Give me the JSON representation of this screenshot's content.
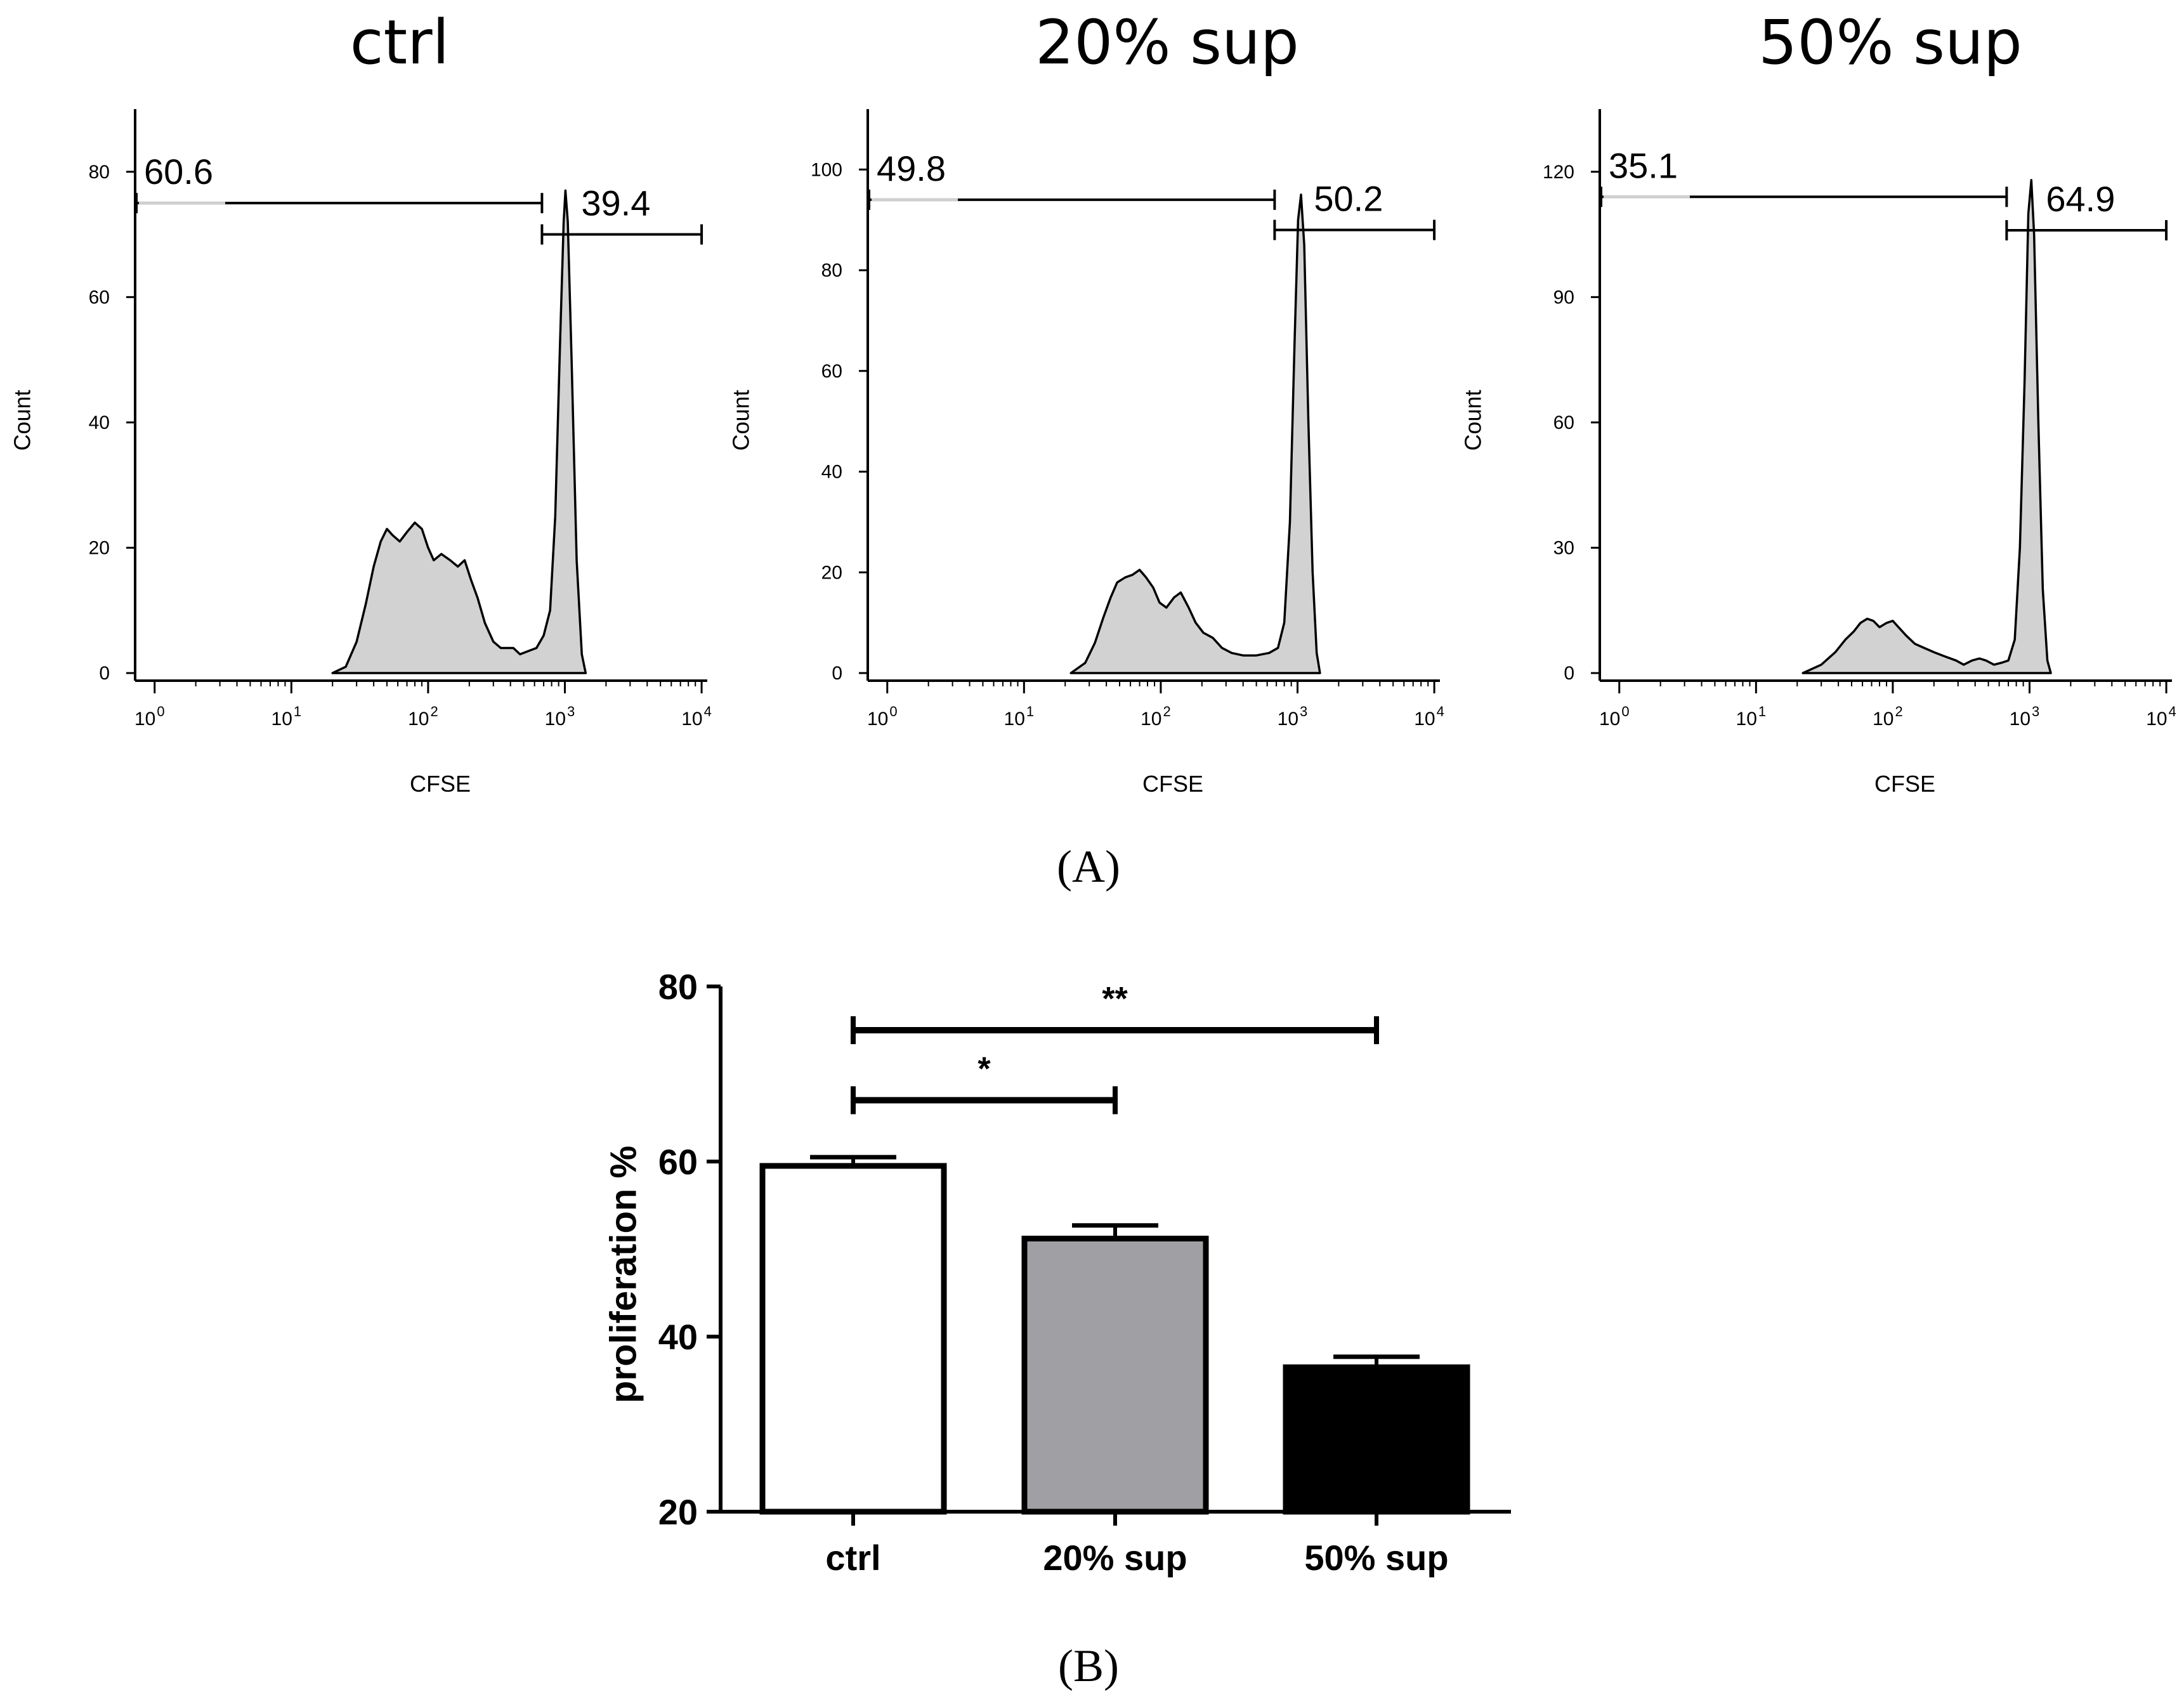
{
  "panel_a_label": "(A)",
  "panel_b_label": "(B)",
  "chart_data": [
    {
      "type": "area",
      "title": "ctrl",
      "xlabel": "CFSE",
      "ylabel": "Count",
      "xscale": "log",
      "xlim": [
        0.72,
        11000
      ],
      "ylim": [
        0,
        90
      ],
      "x_ticks": [
        1,
        10,
        100,
        1000,
        10000
      ],
      "x_tick_exponents": [
        "0",
        "1",
        "2",
        "3",
        "4"
      ],
      "y_ticks": [
        0,
        20,
        40,
        60,
        80
      ],
      "gates": [
        {
          "label": "60.6",
          "x_from": 0.72,
          "x_to": 680,
          "y": 75
        },
        {
          "label": "39.4",
          "x_from": 680,
          "x_to": 10000,
          "y": 70
        }
      ],
      "series": [
        [
          20,
          0
        ],
        [
          25,
          1
        ],
        [
          30,
          5
        ],
        [
          35,
          11
        ],
        [
          40,
          17
        ],
        [
          45,
          21
        ],
        [
          50,
          23
        ],
        [
          55,
          22
        ],
        [
          62,
          21
        ],
        [
          70,
          22.5
        ],
        [
          80,
          24
        ],
        [
          90,
          23
        ],
        [
          100,
          20
        ],
        [
          110,
          18
        ],
        [
          125,
          19
        ],
        [
          145,
          18
        ],
        [
          165,
          17
        ],
        [
          185,
          18
        ],
        [
          205,
          15
        ],
        [
          230,
          12
        ],
        [
          260,
          8
        ],
        [
          300,
          5
        ],
        [
          340,
          4
        ],
        [
          380,
          4
        ],
        [
          420,
          4
        ],
        [
          470,
          3
        ],
        [
          540,
          3.5
        ],
        [
          620,
          4
        ],
        [
          700,
          6
        ],
        [
          780,
          10
        ],
        [
          850,
          25
        ],
        [
          920,
          52
        ],
        [
          980,
          72
        ],
        [
          1010,
          77
        ],
        [
          1050,
          72
        ],
        [
          1120,
          50
        ],
        [
          1220,
          18
        ],
        [
          1330,
          3
        ],
        [
          1420,
          0
        ]
      ]
    },
    {
      "type": "area",
      "title": "20% sup",
      "xlabel": "CFSE",
      "ylabel": "Count",
      "xscale": "log",
      "xlim": [
        0.72,
        11000
      ],
      "ylim": [
        0,
        112
      ],
      "x_ticks": [
        1,
        10,
        100,
        1000,
        10000
      ],
      "x_tick_exponents": [
        "0",
        "1",
        "2",
        "3",
        "4"
      ],
      "y_ticks": [
        0,
        20,
        40,
        60,
        80,
        100
      ],
      "gates": [
        {
          "label": "49.8",
          "x_from": 0.72,
          "x_to": 680,
          "y": 94
        },
        {
          "label": "50.2",
          "x_from": 680,
          "x_to": 10000,
          "y": 88
        }
      ],
      "series": [
        [
          22,
          0
        ],
        [
          28,
          2
        ],
        [
          33,
          6
        ],
        [
          38,
          11
        ],
        [
          43,
          15
        ],
        [
          48,
          18
        ],
        [
          55,
          19
        ],
        [
          62,
          19.5
        ],
        [
          70,
          20.5
        ],
        [
          78,
          19
        ],
        [
          88,
          17
        ],
        [
          98,
          14
        ],
        [
          110,
          13
        ],
        [
          125,
          15
        ],
        [
          140,
          16
        ],
        [
          160,
          13
        ],
        [
          180,
          10
        ],
        [
          205,
          8
        ],
        [
          240,
          7
        ],
        [
          280,
          5
        ],
        [
          330,
          4
        ],
        [
          400,
          3.5
        ],
        [
          500,
          3.5
        ],
        [
          620,
          4
        ],
        [
          720,
          5
        ],
        [
          800,
          10
        ],
        [
          880,
          30
        ],
        [
          950,
          65
        ],
        [
          1010,
          90
        ],
        [
          1060,
          95
        ],
        [
          1120,
          85
        ],
        [
          1200,
          50
        ],
        [
          1290,
          20
        ],
        [
          1380,
          4
        ],
        [
          1460,
          0
        ]
      ]
    },
    {
      "type": "area",
      "title": "50% sup",
      "xlabel": "CFSE",
      "ylabel": "Count",
      "xscale": "log",
      "xlim": [
        0.72,
        11000
      ],
      "ylim": [
        0,
        135
      ],
      "x_ticks": [
        1,
        10,
        100,
        1000,
        10000
      ],
      "x_tick_exponents": [
        "0",
        "1",
        "2",
        "3",
        "4"
      ],
      "y_ticks": [
        0,
        30,
        60,
        90,
        120
      ],
      "gates": [
        {
          "label": "35.1",
          "x_from": 0.72,
          "x_to": 680,
          "y": 114
        },
        {
          "label": "64.9",
          "x_from": 680,
          "x_to": 10000,
          "y": 106
        }
      ],
      "series": [
        [
          22,
          0
        ],
        [
          30,
          2
        ],
        [
          38,
          5
        ],
        [
          45,
          8
        ],
        [
          52,
          10
        ],
        [
          58,
          12
        ],
        [
          65,
          13
        ],
        [
          72,
          12.5
        ],
        [
          80,
          11
        ],
        [
          90,
          12
        ],
        [
          100,
          12.5
        ],
        [
          110,
          11
        ],
        [
          125,
          9
        ],
        [
          145,
          7
        ],
        [
          170,
          6
        ],
        [
          200,
          5
        ],
        [
          240,
          4
        ],
        [
          290,
          3
        ],
        [
          330,
          2
        ],
        [
          380,
          3
        ],
        [
          430,
          3.5
        ],
        [
          480,
          3
        ],
        [
          550,
          2
        ],
        [
          630,
          2.5
        ],
        [
          700,
          3
        ],
        [
          780,
          8
        ],
        [
          850,
          30
        ],
        [
          920,
          70
        ],
        [
          980,
          110
        ],
        [
          1030,
          118
        ],
        [
          1080,
          105
        ],
        [
          1160,
          60
        ],
        [
          1250,
          20
        ],
        [
          1350,
          3
        ],
        [
          1430,
          0
        ]
      ]
    },
    {
      "type": "bar",
      "title": "",
      "xlabel": "",
      "ylabel": "proliferation %",
      "categories": [
        "ctrl",
        "20% sup",
        "50% sup"
      ],
      "values": [
        59.5,
        51.2,
        36.5
      ],
      "errors": [
        1.0,
        1.5,
        1.2
      ],
      "bar_colors": [
        "#ffffff",
        "#a09fa4",
        "#000000"
      ],
      "ylim": [
        20,
        80
      ],
      "y_ticks": [
        20,
        40,
        60,
        80
      ],
      "significance": [
        {
          "from": "ctrl",
          "to": "20% sup",
          "label": "*",
          "y": 67
        },
        {
          "from": "ctrl",
          "to": "50% sup",
          "label": "**",
          "y": 75
        }
      ]
    }
  ]
}
